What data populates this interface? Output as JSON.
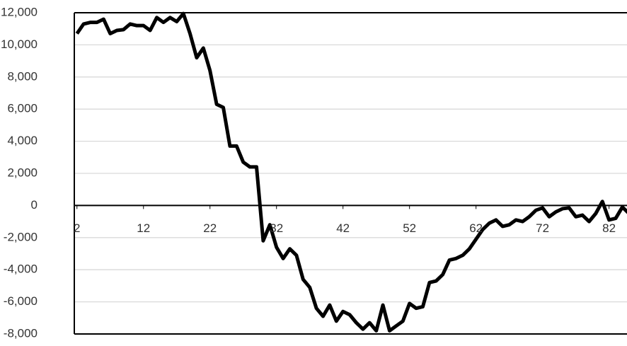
{
  "chart_data": {
    "type": "line",
    "x": [
      2,
      3,
      4,
      5,
      6,
      7,
      8,
      9,
      10,
      11,
      12,
      13,
      14,
      15,
      16,
      17,
      18,
      19,
      20,
      21,
      22,
      23,
      24,
      25,
      26,
      27,
      28,
      29,
      30,
      31,
      32,
      33,
      34,
      35,
      36,
      37,
      38,
      39,
      40,
      41,
      42,
      43,
      44,
      45,
      46,
      47,
      48,
      49,
      50,
      51,
      52,
      53,
      54,
      55,
      56,
      57,
      58,
      59,
      60,
      61,
      62,
      63,
      64,
      65,
      66,
      67,
      68,
      69,
      70,
      71,
      72,
      73,
      74,
      75,
      76,
      77,
      78,
      79,
      80,
      81,
      82,
      83,
      84,
      85
    ],
    "series": [
      {
        "color": "#000000",
        "values": [
          10700,
          11300,
          11400,
          11400,
          11600,
          10700,
          10900,
          10950,
          11300,
          11200,
          11200,
          10900,
          11700,
          11400,
          11700,
          11450,
          11950,
          10700,
          9200,
          9800,
          8400,
          6300,
          6100,
          3700,
          3700,
          2700,
          2400,
          2400,
          -2200,
          -1200,
          -2600,
          -3300,
          -2700,
          -3100,
          -4600,
          -5100,
          -6400,
          -6900,
          -6200,
          -7200,
          -6600,
          -6800,
          -7300,
          -7700,
          -7300,
          -7800,
          -6200,
          -7800,
          -7500,
          -7200,
          -6100,
          -6400,
          -6300,
          -4800,
          -4700,
          -4300,
          -3400,
          -3300,
          -3100,
          -2700,
          -2100,
          -1500,
          -1100,
          -900,
          -1300,
          -1200,
          -900,
          -1000,
          -700,
          -300,
          -150,
          -700,
          -400,
          -200,
          -150,
          -700,
          -600,
          -1000,
          -500,
          250,
          -900,
          -800,
          -100,
          -500
        ]
      }
    ],
    "xlim": [
      1.6,
      84.7
    ],
    "xticks": [
      2,
      12,
      22,
      32,
      42,
      52,
      62,
      72,
      82
    ],
    "ylim": [
      -8000,
      12000
    ],
    "yticks": [
      {
        "value": -8000,
        "label": "-8,000"
      },
      {
        "value": -6000,
        "label": "-6,000"
      },
      {
        "value": -4000,
        "label": "-4,000"
      },
      {
        "value": -2000,
        "label": "-2,000"
      },
      0,
      {
        "value": 2000,
        "label": "2,000"
      },
      {
        "value": 4000,
        "label": "4,000"
      },
      {
        "value": 6000,
        "label": "6,000"
      },
      {
        "value": 8000,
        "label": "8,000"
      },
      {
        "value": 10000,
        "label": "10,000"
      },
      {
        "value": 12000,
        "label": "12,000"
      }
    ],
    "grid": true
  }
}
